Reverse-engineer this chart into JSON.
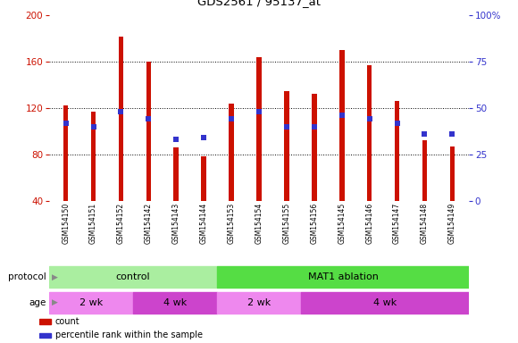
{
  "title": "GDS2561 / 95137_at",
  "samples": [
    "GSM154150",
    "GSM154151",
    "GSM154152",
    "GSM154142",
    "GSM154143",
    "GSM154144",
    "GSM154153",
    "GSM154154",
    "GSM154155",
    "GSM154156",
    "GSM154145",
    "GSM154146",
    "GSM154147",
    "GSM154148",
    "GSM154149"
  ],
  "counts": [
    122,
    117,
    182,
    160,
    86,
    78,
    124,
    164,
    135,
    132,
    170,
    157,
    126,
    92,
    87
  ],
  "percentile_ranks": [
    42,
    40,
    48,
    44,
    33,
    34,
    44,
    48,
    40,
    40,
    46,
    44,
    42,
    36,
    36
  ],
  "ylim_left": [
    40,
    200
  ],
  "ylim_right": [
    0,
    100
  ],
  "yticks_left": [
    40,
    80,
    120,
    160,
    200
  ],
  "yticks_right": [
    0,
    25,
    50,
    75,
    100
  ],
  "bar_color": "#cc1100",
  "blue_color": "#3333cc",
  "bg_color": "#ffffff",
  "tick_area_color": "#c8c8c8",
  "protocol_control_color": "#aaeea0",
  "protocol_mat1_color": "#55dd44",
  "age_2wk_color": "#ee88ee",
  "age_4wk_color": "#cc44cc",
  "bar_width": 0.18,
  "protocol_groups": [
    {
      "label": "control",
      "start": 0,
      "end": 6
    },
    {
      "label": "MAT1 ablation",
      "start": 6,
      "end": 15
    }
  ],
  "age_groups": [
    {
      "label": "2 wk",
      "start": 0,
      "end": 3
    },
    {
      "label": "4 wk",
      "start": 3,
      "end": 6
    },
    {
      "label": "2 wk",
      "start": 6,
      "end": 9
    },
    {
      "label": "4 wk",
      "start": 9,
      "end": 15
    }
  ],
  "legend_items": [
    {
      "color": "#cc1100",
      "label": "count"
    },
    {
      "color": "#3333cc",
      "label": "percentile rank within the sample"
    }
  ]
}
